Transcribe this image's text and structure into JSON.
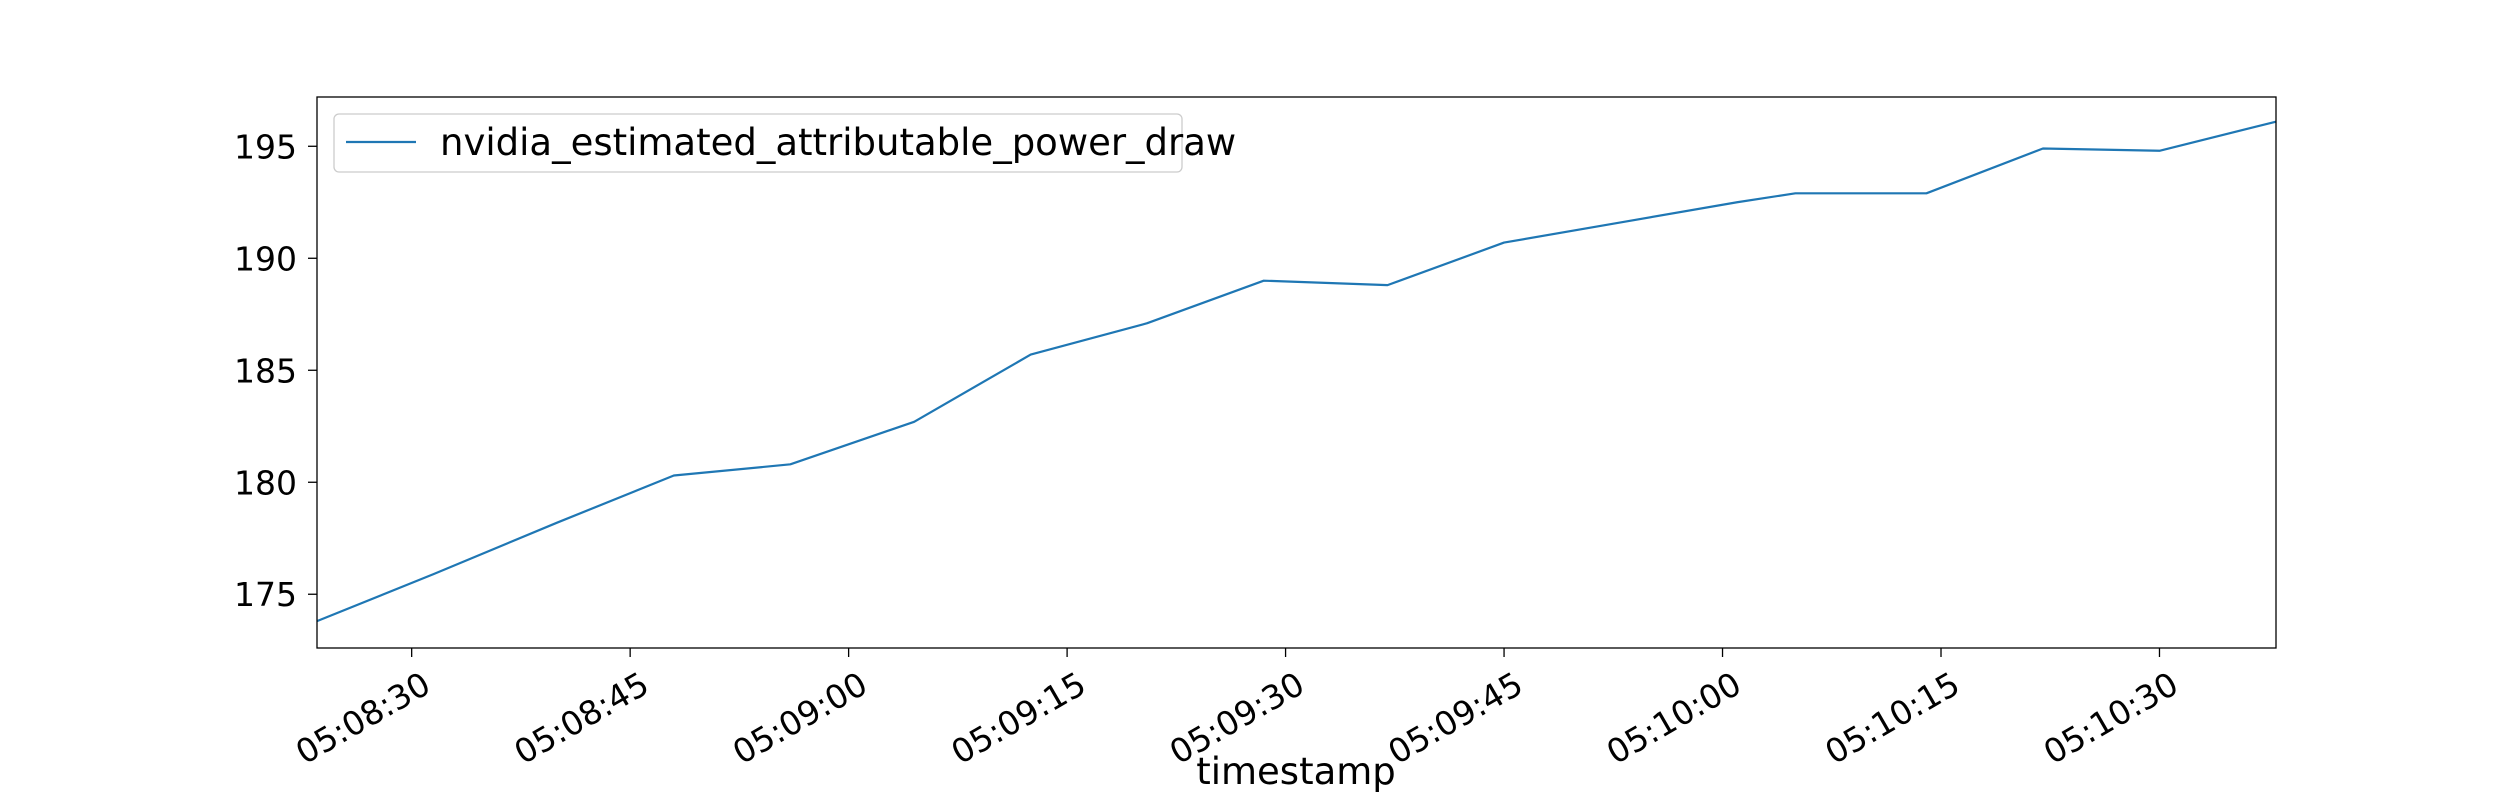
{
  "chart_data": {
    "type": "line",
    "title": "",
    "xlabel": "timestamp",
    "ylabel": "",
    "x_tick_labels": [
      "05:08:30",
      "05:08:45",
      "05:09:00",
      "05:09:15",
      "05:09:30",
      "05:09:45",
      "05:10:00",
      "05:10:15",
      "05:10:30"
    ],
    "y_tick_labels": [
      "175",
      "180",
      "185",
      "190",
      "195"
    ],
    "xlim": [
      "05:08:23.5",
      "05:10:38"
    ],
    "ylim": [
      172.6,
      197.2
    ],
    "grid": false,
    "legend": {
      "position": "top-left",
      "entries": [
        "nvidia_estimated_attributable_power_draw"
      ]
    },
    "series": [
      {
        "name": "nvidia_estimated_attributable_power_draw",
        "color": "#1f77b4",
        "x": [
          "05:08:23.5",
          "05:08:31.5",
          "05:08:40",
          "05:08:48",
          "05:08:56",
          "05:09:04.5",
          "05:09:12.5",
          "05:09:20.5",
          "05:09:28.5",
          "05:09:37",
          "05:09:45",
          "05:09:53",
          "05:10:01",
          "05:10:05",
          "05:10:14",
          "05:10:22",
          "05:10:30",
          "05:10:38"
        ],
        "y": [
          173.8,
          175.9,
          178.2,
          180.3,
          180.8,
          182.7,
          185.7,
          187.1,
          189.0,
          188.8,
          190.7,
          191.6,
          192.5,
          192.9,
          192.9,
          194.9,
          194.8,
          196.1
        ]
      }
    ]
  }
}
